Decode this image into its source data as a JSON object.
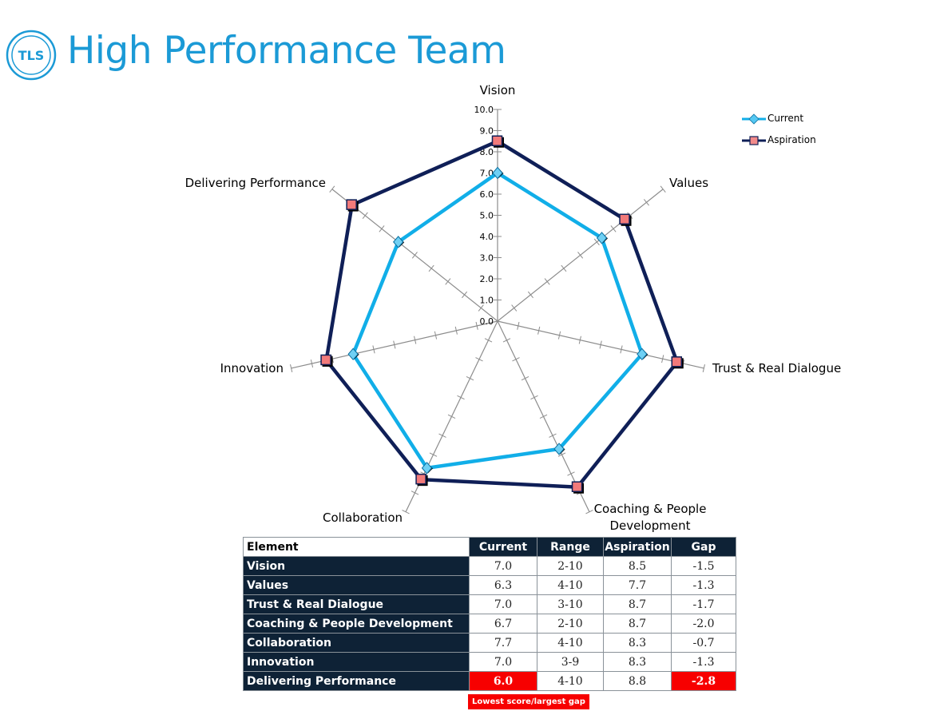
{
  "header": {
    "logo_text": "TLS",
    "title": "High Performance Team"
  },
  "colors": {
    "title": "#1b9ad6",
    "current": "#11aee8",
    "aspiration": "#0f1f57",
    "table_dark": "#0e2236",
    "highlight": "#f70000"
  },
  "chart_data": {
    "type": "radar",
    "title": "",
    "axes": [
      "Vision",
      "Values",
      "Trust & Real Dialogue",
      "Coaching & People Development",
      "Collaboration",
      "Innovation",
      "Delivering Performance"
    ],
    "axis_labels_display": [
      "Vision",
      "Values",
      "Trust & Real Dialogue",
      "Coaching & People\nDevelopment",
      "Collaboration",
      "Innovation",
      "Delivering Performance"
    ],
    "range": [
      0,
      10
    ],
    "ticks": [
      "0.0",
      "1.0",
      "2.0",
      "3.0",
      "4.0",
      "5.0",
      "6.0",
      "7.0",
      "8.0",
      "9.0",
      "10.0"
    ],
    "series": [
      {
        "name": "Current",
        "values": [
          7.0,
          6.3,
          7.0,
          6.7,
          7.7,
          7.0,
          6.0
        ],
        "color": "#11aee8",
        "marker": "diamond"
      },
      {
        "name": "Aspiration",
        "values": [
          8.5,
          7.7,
          8.7,
          8.7,
          8.3,
          8.3,
          8.8
        ],
        "color": "#0f1f57",
        "marker": "square"
      }
    ],
    "legend_position": "top-right"
  },
  "table": {
    "headers": [
      "Element",
      "Current",
      "Range",
      "Aspiration",
      "Gap"
    ],
    "rows": [
      {
        "element": "Vision",
        "current": "7.0",
        "range": "2-10",
        "aspiration": "8.5",
        "gap": "-1.5"
      },
      {
        "element": "Values",
        "current": "6.3",
        "range": "4-10",
        "aspiration": "7.7",
        "gap": "-1.3"
      },
      {
        "element": "Trust & Real Dialogue",
        "current": "7.0",
        "range": "3-10",
        "aspiration": "8.7",
        "gap": "-1.7"
      },
      {
        "element": "Coaching & People Development",
        "current": "6.7",
        "range": "2-10",
        "aspiration": "8.7",
        "gap": "-2.0"
      },
      {
        "element": "Collaboration",
        "current": "7.7",
        "range": "4-10",
        "aspiration": "8.3",
        "gap": "-0.7"
      },
      {
        "element": "Innovation",
        "current": "7.0",
        "range": "3-9",
        "aspiration": "8.3",
        "gap": "-1.3"
      },
      {
        "element": "Delivering Performance",
        "current": "6.0",
        "range": "4-10",
        "aspiration": "8.8",
        "gap": "-2.8"
      }
    ],
    "highlighted_cells": [
      "Delivering Performance.current",
      "Delivering Performance.gap"
    ],
    "note": "Lowest score/largest gap"
  }
}
